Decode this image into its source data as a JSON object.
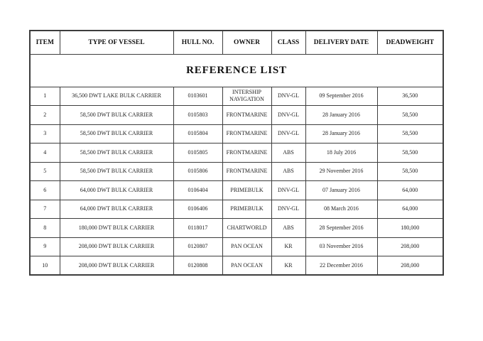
{
  "document": {
    "title": "REFERENCE LIST"
  },
  "colors": {
    "background": "#ffffff",
    "border": "#3d3d3d",
    "text": "#1f1f1f"
  },
  "table": {
    "columns": [
      {
        "key": "item",
        "label": "ITEM"
      },
      {
        "key": "type",
        "label": "TYPE OF VESSEL"
      },
      {
        "key": "hull",
        "label": "HULL NO."
      },
      {
        "key": "owner",
        "label": "OWNER"
      },
      {
        "key": "class",
        "label": "CLASS"
      },
      {
        "key": "delivery",
        "label": "DELIVERY DATE"
      },
      {
        "key": "dwt",
        "label": "DEADWEIGHT"
      }
    ],
    "rows": [
      {
        "item": "1",
        "type": "36,500 DWT LAKE BULK CARRIER",
        "hull": "0103601",
        "owner": "INTERSHIP NAVIGATION",
        "class": "DNV-GL",
        "delivery": "09 September 2016",
        "dwt": "36,500"
      },
      {
        "item": "2",
        "type": "58,500 DWT BULK CARRIER",
        "hull": "0105803",
        "owner": "FRONTMARINE",
        "class": "DNV-GL",
        "delivery": "28 January 2016",
        "dwt": "58,500"
      },
      {
        "item": "3",
        "type": "58,500 DWT BULK CARRIER",
        "hull": "0105804",
        "owner": "FRONTMARINE",
        "class": "DNV-GL",
        "delivery": "28 January 2016",
        "dwt": "58,500"
      },
      {
        "item": "4",
        "type": "58,500 DWT BULK CARRIER",
        "hull": "0105805",
        "owner": "FRONTMARINE",
        "class": "ABS",
        "delivery": "18 July 2016",
        "dwt": "58,500"
      },
      {
        "item": "5",
        "type": "58,500 DWT BULK CARRIER",
        "hull": "0105806",
        "owner": "FRONTMARINE",
        "class": "ABS",
        "delivery": "29 November 2016",
        "dwt": "58,500"
      },
      {
        "item": "6",
        "type": "64,000 DWT BULK CARRIER",
        "hull": "0106404",
        "owner": "PRIMEBULK",
        "class": "DNV-GL",
        "delivery": "07 January 2016",
        "dwt": "64,000"
      },
      {
        "item": "7",
        "type": "64,000 DWT BULK CARRIER",
        "hull": "0106406",
        "owner": "PRIMEBULK",
        "class": "DNV-GL",
        "delivery": "08 March 2016",
        "dwt": "64,000"
      },
      {
        "item": "8",
        "type": "180,000 DWT BULK CARRIER",
        "hull": "0118017",
        "owner": "CHARTWORLD",
        "class": "ABS",
        "delivery": "28 September 2016",
        "dwt": "180,000"
      },
      {
        "item": "9",
        "type": "208,000 DWT BULK CARRIER",
        "hull": "0120807",
        "owner": "PAN OCEAN",
        "class": "KR",
        "delivery": "03 November 2016",
        "dwt": "208,000"
      },
      {
        "item": "10",
        "type": "208,000 DWT BULK CARRIER",
        "hull": "0120808",
        "owner": "PAN OCEAN",
        "class": "KR",
        "delivery": "22 December 2016",
        "dwt": "208,000"
      }
    ]
  }
}
